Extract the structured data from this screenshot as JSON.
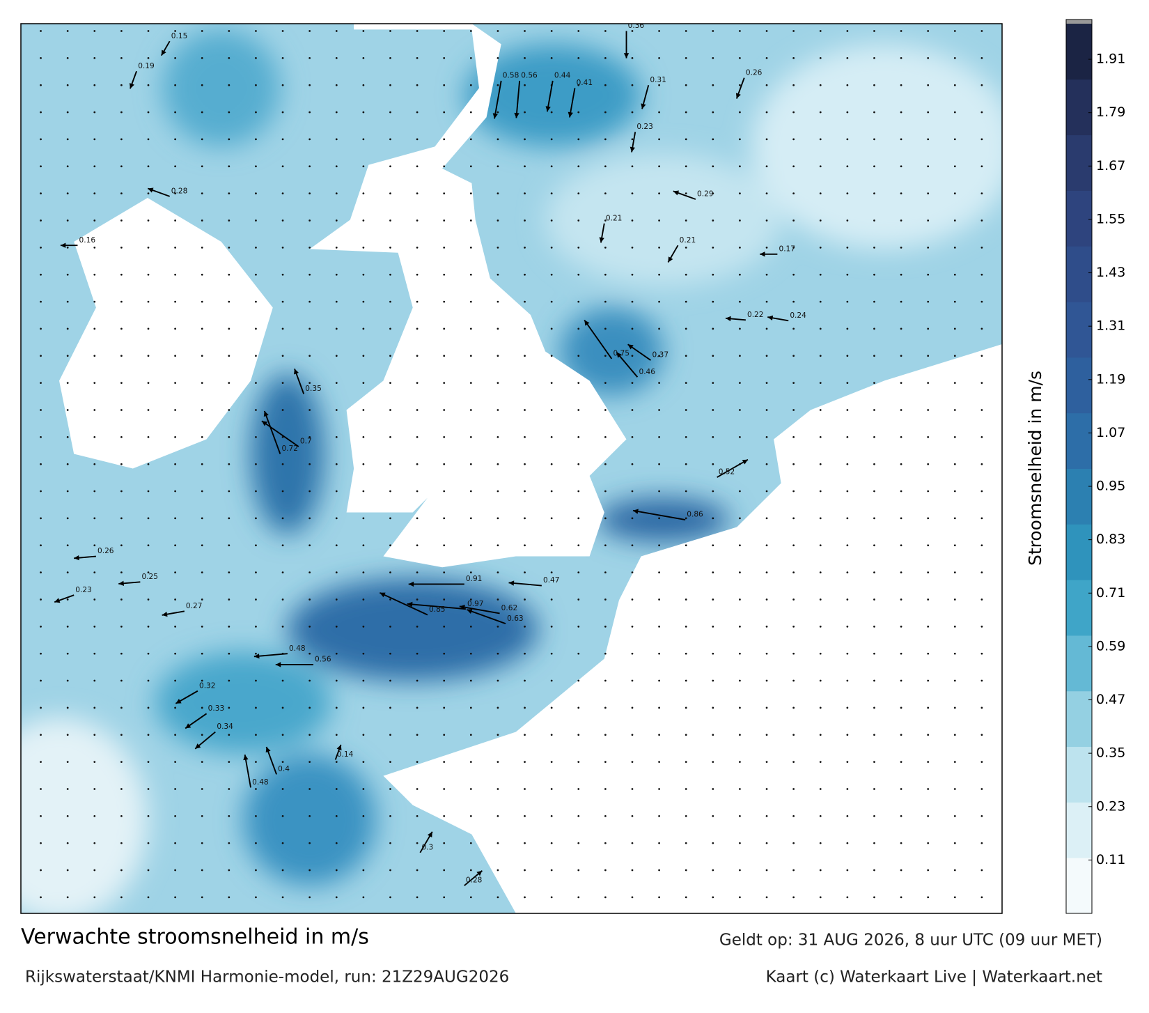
{
  "title": "Verwachte stroomsnelheid in m/s",
  "subtitle": "Rijkswaterstaat/KNMI Harmonie-model, run: 21Z29AUG2026",
  "valid_time": "Geldt op: 31 AUG 2026, 8 uur UTC (09 uur MET)",
  "credit": "Kaart (c) Waterkaart Live | Waterkaart.net",
  "colorbar": {
    "label": "Stroomsnelheid in m/s",
    "clim": [
      -0.01,
      1.99
    ],
    "ticks": [
      0.11,
      0.23,
      0.35,
      0.47,
      0.59,
      0.71,
      0.83,
      0.95,
      1.07,
      1.19,
      1.31,
      1.43,
      1.55,
      1.67,
      1.79,
      1.91
    ],
    "colors": [
      "#f4fafc",
      "#dcf0f6",
      "#bde3ee",
      "#94d0e2",
      "#64b9d5",
      "#3fa5c8",
      "#2f93bc",
      "#2c80b1",
      "#2d6ea8",
      "#2e609e",
      "#305695",
      "#2f4d8a",
      "#2e447e",
      "#2a3b6e",
      "#24305b",
      "#1b2444"
    ]
  },
  "speed_labels": [
    0.91,
    0.97,
    0.85,
    0.72,
    0.7,
    0.75,
    0.86,
    0.58,
    0.56,
    0.44,
    0.41,
    0.47,
    0.62,
    0.63,
    0.48,
    0.56,
    0.46,
    0.52,
    0.35,
    0.37,
    0.24,
    0.22,
    0.29,
    0.36,
    0.26,
    0.31,
    0.23,
    0.21,
    0.21,
    0.17,
    0.27,
    0.25,
    0.26,
    0.23,
    0.32,
    0.33,
    0.34,
    0.4,
    0.48,
    0.3,
    0.28,
    0.14,
    0.15,
    0.19,
    0.28,
    0.16
  ]
}
